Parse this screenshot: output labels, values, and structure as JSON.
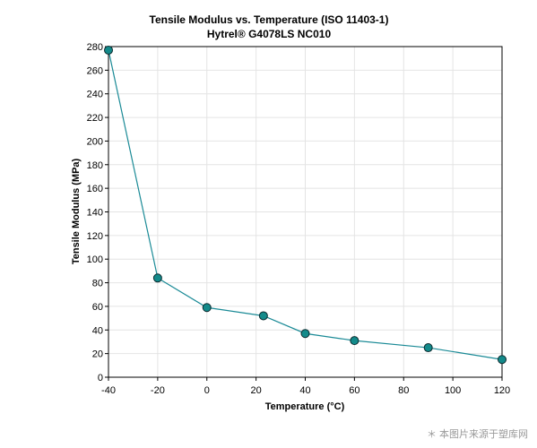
{
  "chart_data": {
    "type": "line",
    "title": "Tensile Modulus vs. Temperature (ISO 11403-1)",
    "subtitle": "Hytrel® G4078LS NC010",
    "xlabel": "Temperature (°C)",
    "ylabel": "Tensile Modulus (MPa)",
    "xlim": [
      -40,
      120
    ],
    "ylim": [
      0,
      280
    ],
    "xticks": [
      -40,
      -20,
      0,
      20,
      40,
      60,
      80,
      100,
      120
    ],
    "yticks": [
      0,
      20,
      40,
      60,
      80,
      100,
      120,
      140,
      160,
      180,
      200,
      220,
      240,
      260,
      280
    ],
    "grid": true,
    "series": [
      {
        "x": [
          -40,
          -20,
          0,
          23,
          40,
          60,
          90,
          120
        ],
        "y": [
          277,
          84,
          59,
          52,
          37,
          31,
          25,
          15
        ],
        "line_color": "#1a8a96",
        "marker_color": "#138a8a"
      }
    ]
  },
  "watermark": "＊ 本图片来源于塑库网"
}
